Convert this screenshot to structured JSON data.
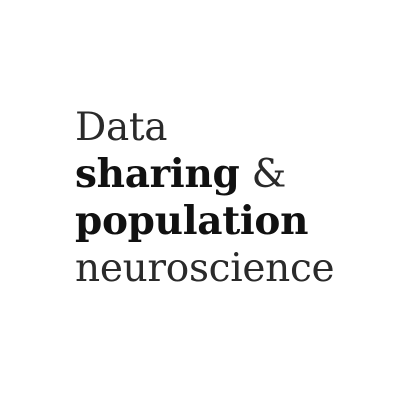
{
  "title": {
    "line1": "Data",
    "line2_bold": "sharing",
    "line2_rest": " &",
    "line3": "population",
    "line4": "neuroscience"
  },
  "colors": {
    "background": "#ffffff",
    "text": "#1a1a1a"
  }
}
